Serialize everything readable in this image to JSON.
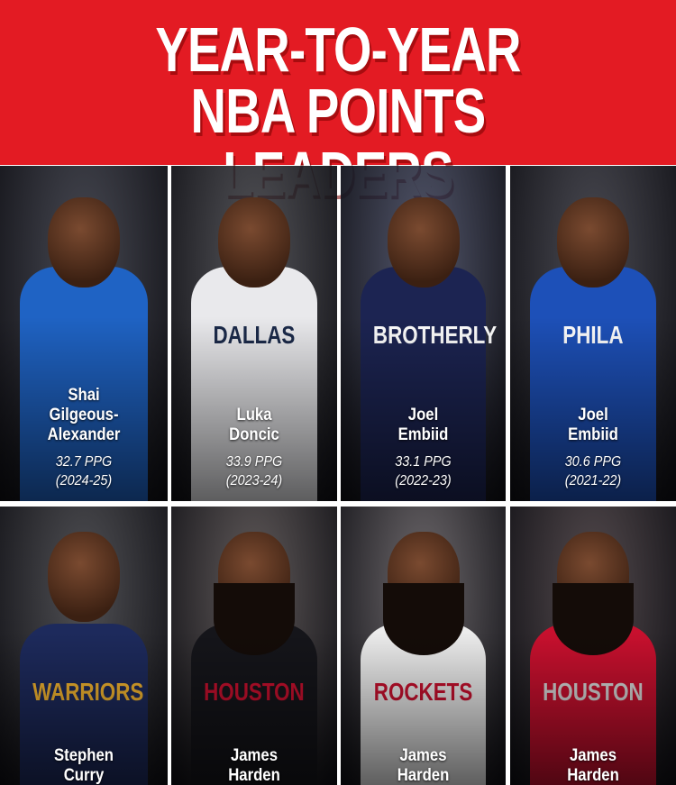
{
  "title": {
    "line1": "YEAR-TO-YEAR",
    "line2": "NBA POINTS LEADERS"
  },
  "colors": {
    "header": "#e31b23"
  },
  "players": [
    {
      "name_lines": [
        "Shai",
        "Gilgeous-",
        "Alexander"
      ],
      "ppg": "32.7 PPG",
      "season": "(2024-25)",
      "jersey_color": "#1f63c4"
    },
    {
      "name_lines": [
        "Luka",
        "Doncic"
      ],
      "ppg": "33.9 PPG",
      "season": "(2023-24)",
      "jersey_color": "#e9e9ec"
    },
    {
      "name_lines": [
        "Joel",
        "Embiid"
      ],
      "ppg": "33.1 PPG",
      "season": "(2022-23)",
      "jersey_color": "#1c2452"
    },
    {
      "name_lines": [
        "Joel",
        "Embiid"
      ],
      "ppg": "30.6 PPG",
      "season": "(2021-22)",
      "jersey_color": "#1d50b8"
    },
    {
      "name_lines": [
        "Stephen",
        "Curry"
      ],
      "jersey_color": "#1d2a5c"
    },
    {
      "name_lines": [
        "James",
        "Harden"
      ],
      "jersey_color": "#15151a"
    },
    {
      "name_lines": [
        "James",
        "Harden"
      ],
      "jersey_color": "#ececec"
    },
    {
      "name_lines": [
        "James",
        "Harden"
      ],
      "jersey_color": "#c8102e"
    }
  ],
  "jersey_lettering": [
    "",
    "DALLAS",
    "BROTHERLY",
    "PHILA",
    "WARRIORS",
    "HOUSTON",
    "ROCKETS",
    "HOUSTON"
  ]
}
